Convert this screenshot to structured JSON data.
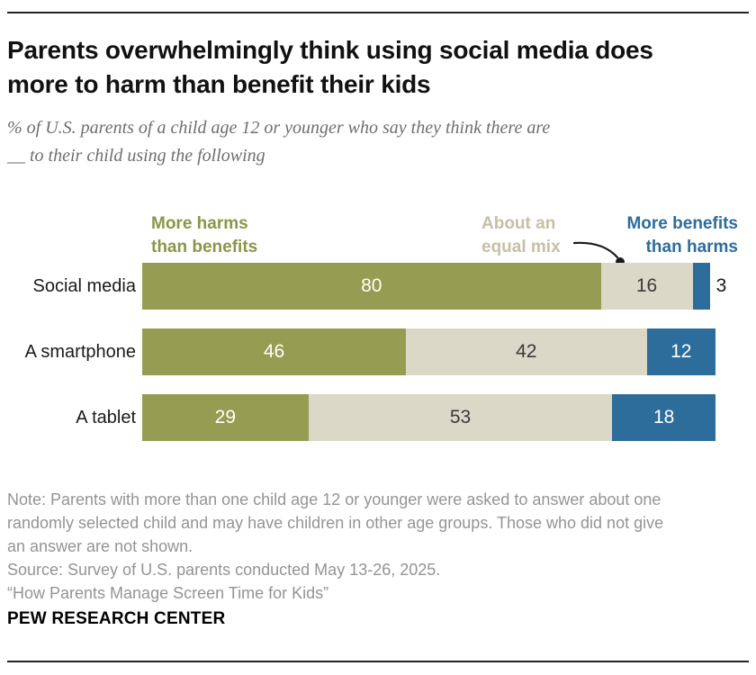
{
  "header": {
    "title_lines": [
      "Parents overwhelmingly think using social media does",
      "more to harm than benefit their kids"
    ],
    "subtitle_lines": [
      "% of U.S. parents of a child age 12 or younger who say they think there are",
      "__ to their child using the following"
    ]
  },
  "legend": {
    "harms_lines": [
      "More harms",
      "than benefits"
    ],
    "equal_lines": [
      "About an",
      "equal mix"
    ],
    "benefits_lines": [
      "More benefits",
      "than harms"
    ]
  },
  "chart_data": {
    "type": "bar",
    "orientation": "horizontal",
    "stacked": true,
    "title": "Parents overwhelmingly think using social media does more to harm than benefit their kids",
    "subtitle": "% of U.S. parents of a child age 12 or younger who say they think there are __ to their child using the following",
    "categories": [
      "Social media",
      "A smartphone",
      "A tablet"
    ],
    "series": [
      {
        "key": "harms",
        "name": "More harms than benefits",
        "color": "#949d52",
        "label_color": "#ffffff",
        "values": [
          80,
          46,
          29
        ]
      },
      {
        "key": "equal",
        "name": "About an equal mix",
        "color": "#dcd8c7",
        "label_color": "#3a3a3a",
        "values": [
          16,
          42,
          53
        ]
      },
      {
        "key": "benefits",
        "name": "More benefits than harms",
        "color": "#2d6d9b",
        "label_color": "#ffffff",
        "values": [
          3,
          12,
          18
        ]
      }
    ],
    "xlim": [
      0,
      100
    ],
    "inside_label_min": 5,
    "grid": false,
    "legend_position": "top"
  },
  "colors": {
    "olive": "#949d52",
    "tan": "#dcd8c7",
    "blue": "#2d6d9b",
    "legend_olive_text": "#8d9548",
    "legend_tan_text": "#c5c0a5",
    "legend_blue_text": "#2d6d9b",
    "note_gray": "#949494",
    "arrow": "#1a1a1a"
  },
  "footer": {
    "note_lines": [
      "Note: Parents with more than one child age 12 or younger were asked to answer about one",
      "randomly selected child and may have children in other age groups. Those who did not give",
      "an answer are not shown."
    ],
    "source": "Source: Survey of U.S. parents conducted May 13-26, 2025.",
    "quote": "“How Parents Manage Screen Time for Kids”",
    "brand": "PEW RESEARCH CENTER"
  }
}
